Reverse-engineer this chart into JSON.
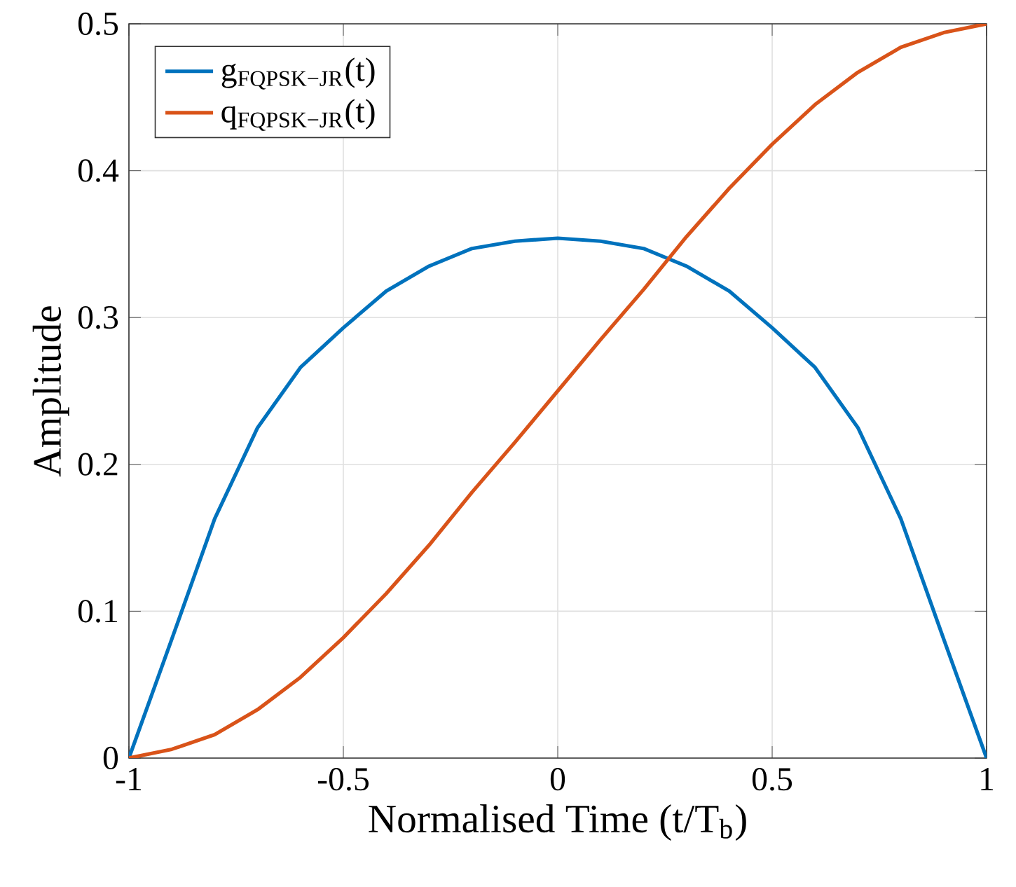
{
  "chart_data": {
    "type": "line",
    "xlabel": "Normalised Time (t/T$_{b}$)",
    "ylabel": "Amplitude",
    "x": [
      -1,
      -0.9,
      -0.8,
      -0.7,
      -0.6,
      -0.5,
      -0.4,
      -0.3,
      -0.2,
      -0.1,
      0,
      0.1,
      0.2,
      0.3,
      0.4,
      0.5,
      0.6,
      0.7,
      0.8,
      0.9,
      1
    ],
    "series": [
      {
        "name": "g$_{FQPSK−JR}$(t)",
        "color": "#0072bd",
        "values": [
          0,
          0.081,
          0.163,
          0.225,
          0.266,
          0.293,
          0.318,
          0.335,
          0.347,
          0.352,
          0.354,
          0.352,
          0.347,
          0.335,
          0.318,
          0.293,
          0.266,
          0.225,
          0.163,
          0.081,
          0
        ]
      },
      {
        "name": "q$_{FQPSK−JR}$(t)",
        "color": "#d95319",
        "values": [
          0,
          0.006,
          0.016,
          0.033,
          0.055,
          0.082,
          0.112,
          0.145,
          0.181,
          0.215,
          0.25,
          0.285,
          0.319,
          0.355,
          0.388,
          0.418,
          0.445,
          0.467,
          0.484,
          0.494,
          0.5
        ]
      }
    ],
    "xlim": [
      -1,
      1
    ],
    "ylim": [
      0,
      0.5
    ],
    "xticks": [
      -1,
      -0.5,
      0,
      0.5,
      1
    ],
    "yticks": [
      0,
      0.1,
      0.2,
      0.3,
      0.4,
      0.5
    ],
    "grid": true,
    "legend": "top left",
    "marker": "none",
    "line_style": "solid"
  }
}
